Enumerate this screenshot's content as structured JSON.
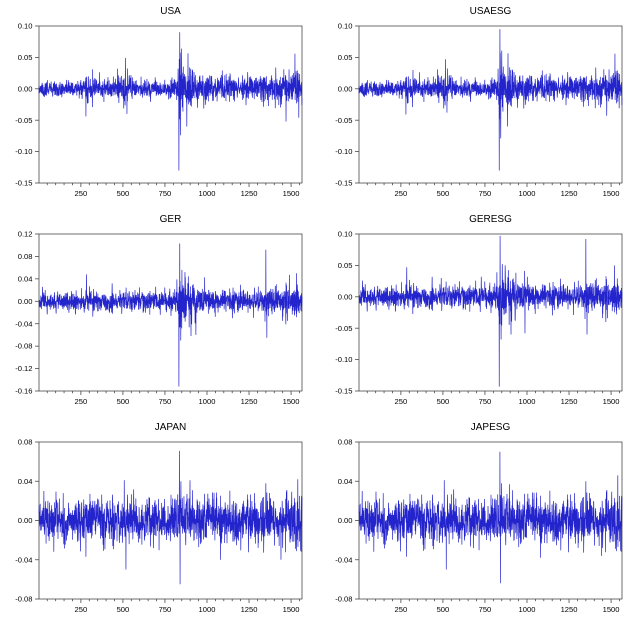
{
  "figure": {
    "background": "#ffffff",
    "line_color": "#2424cc",
    "frame_color": "#4a4a4a",
    "text_color": "#000000",
    "grid": "off",
    "legend": "none"
  },
  "chart_data": [
    {
      "type": "line",
      "title": "USA",
      "xlabel": "",
      "ylabel": "",
      "n": 1565,
      "seed": 11,
      "xlim": [
        1,
        1565
      ],
      "xticks": [
        250,
        500,
        750,
        1000,
        1250,
        1500
      ],
      "xminor_step": 50,
      "ylim": [
        -0.15,
        0.1
      ],
      "ytick_step": 0.05,
      "ytick_decimals": 2,
      "baseline": 0,
      "cap": 0.058,
      "vol_profile": [
        [
          1,
          0.0062
        ],
        [
          240,
          0.0062
        ],
        [
          285,
          0.0105
        ],
        [
          335,
          0.0072
        ],
        [
          450,
          0.0085
        ],
        [
          520,
          0.0108
        ],
        [
          570,
          0.007
        ],
        [
          700,
          0.0068
        ],
        [
          795,
          0.0075
        ],
        [
          822,
          0.011
        ],
        [
          833,
          0.028
        ],
        [
          858,
          0.021
        ],
        [
          900,
          0.0145
        ],
        [
          955,
          0.0115
        ],
        [
          1060,
          0.0095
        ],
        [
          1160,
          0.008
        ],
        [
          1255,
          0.0092
        ],
        [
          1360,
          0.0115
        ],
        [
          1460,
          0.0125
        ],
        [
          1565,
          0.0125
        ]
      ],
      "spikes": [
        [
          280,
          -0.044
        ],
        [
          320,
          0.031
        ],
        [
          468,
          0.032
        ],
        [
          515,
          0.049
        ],
        [
          524,
          -0.04
        ],
        [
          833,
          -0.13
        ],
        [
          838,
          0.09
        ],
        [
          843,
          -0.074
        ],
        [
          849,
          0.064
        ],
        [
          880,
          -0.06
        ],
        [
          903,
          0.032
        ],
        [
          1470,
          -0.052
        ],
        [
          1523,
          0.056
        ],
        [
          1546,
          -0.046
        ]
      ]
    },
    {
      "type": "line",
      "title": "USAESG",
      "xlabel": "",
      "ylabel": "",
      "n": 1565,
      "seed": 11,
      "xlim": [
        1,
        1565
      ],
      "xticks": [
        250,
        500,
        750,
        1000,
        1250,
        1500
      ],
      "xminor_step": 50,
      "ylim": [
        -0.15,
        0.1
      ],
      "ytick_step": 0.05,
      "ytick_decimals": 2,
      "baseline": 0,
      "cap": 0.058,
      "vol_profile": [
        [
          1,
          0.0062
        ],
        [
          240,
          0.0062
        ],
        [
          285,
          0.0105
        ],
        [
          335,
          0.0072
        ],
        [
          450,
          0.0085
        ],
        [
          520,
          0.0108
        ],
        [
          570,
          0.007
        ],
        [
          700,
          0.0068
        ],
        [
          795,
          0.0075
        ],
        [
          822,
          0.011
        ],
        [
          833,
          0.028
        ],
        [
          858,
          0.021
        ],
        [
          900,
          0.0145
        ],
        [
          955,
          0.0115
        ],
        [
          1060,
          0.0095
        ],
        [
          1160,
          0.008
        ],
        [
          1255,
          0.0092
        ],
        [
          1360,
          0.0115
        ],
        [
          1460,
          0.0125
        ],
        [
          1565,
          0.0125
        ]
      ],
      "spikes": [
        [
          280,
          -0.041
        ],
        [
          322,
          0.03
        ],
        [
          468,
          0.031
        ],
        [
          515,
          0.047
        ],
        [
          524,
          -0.038
        ],
        [
          835,
          -0.13
        ],
        [
          839,
          0.095
        ],
        [
          844,
          -0.079
        ],
        [
          850,
          0.061
        ],
        [
          884,
          -0.06
        ],
        [
          903,
          0.03
        ],
        [
          1474,
          -0.043
        ],
        [
          1523,
          0.056
        ],
        [
          1548,
          -0.031
        ]
      ]
    },
    {
      "type": "line",
      "title": "GER",
      "xlabel": "",
      "ylabel": "",
      "n": 1565,
      "seed": 33,
      "xlim": [
        1,
        1565
      ],
      "xticks": [
        250,
        500,
        750,
        1000,
        1250,
        1500
      ],
      "xminor_step": 50,
      "ylim": [
        -0.16,
        0.12
      ],
      "ytick_step": 0.04,
      "ytick_decimals": 2,
      "baseline": 0,
      "cap": 0.055,
      "vol_profile": [
        [
          1,
          0.0082
        ],
        [
          250,
          0.0085
        ],
        [
          300,
          0.009
        ],
        [
          500,
          0.009
        ],
        [
          700,
          0.0082
        ],
        [
          800,
          0.009
        ],
        [
          826,
          0.013
        ],
        [
          836,
          0.03
        ],
        [
          868,
          0.022
        ],
        [
          925,
          0.015
        ],
        [
          1005,
          0.0115
        ],
        [
          1110,
          0.0098
        ],
        [
          1255,
          0.0098
        ],
        [
          1330,
          0.0118
        ],
        [
          1395,
          0.0125
        ],
        [
          1500,
          0.0135
        ],
        [
          1565,
          0.0135
        ]
      ],
      "spikes": [
        [
          283,
          0.048
        ],
        [
          833,
          -0.152
        ],
        [
          838,
          0.103
        ],
        [
          844,
          -0.07
        ],
        [
          851,
          0.056
        ],
        [
          869,
          0.052
        ],
        [
          905,
          -0.062
        ],
        [
          934,
          -0.06
        ],
        [
          1350,
          0.092
        ],
        [
          1356,
          -0.065
        ],
        [
          1490,
          0.047
        ],
        [
          1532,
          0.05
        ]
      ]
    },
    {
      "type": "line",
      "title": "GERESG",
      "xlabel": "",
      "ylabel": "",
      "n": 1565,
      "seed": 33,
      "xlim": [
        1,
        1565
      ],
      "xticks": [
        250,
        500,
        750,
        1000,
        1250,
        1500
      ],
      "xminor_step": 50,
      "ylim": [
        -0.15,
        0.1
      ],
      "ytick_step": 0.05,
      "ytick_decimals": 2,
      "baseline": 0,
      "cap": 0.052,
      "vol_profile": [
        [
          1,
          0.0082
        ],
        [
          250,
          0.0085
        ],
        [
          300,
          0.009
        ],
        [
          500,
          0.009
        ],
        [
          700,
          0.0082
        ],
        [
          800,
          0.009
        ],
        [
          826,
          0.013
        ],
        [
          836,
          0.028
        ],
        [
          868,
          0.021
        ],
        [
          925,
          0.0145
        ],
        [
          1005,
          0.0112
        ],
        [
          1110,
          0.0096
        ],
        [
          1255,
          0.0096
        ],
        [
          1330,
          0.0115
        ],
        [
          1395,
          0.0122
        ],
        [
          1500,
          0.0132
        ],
        [
          1565,
          0.0132
        ]
      ],
      "spikes": [
        [
          285,
          0.047
        ],
        [
          490,
          0.03
        ],
        [
          728,
          0.032
        ],
        [
          835,
          -0.143
        ],
        [
          840,
          0.097
        ],
        [
          846,
          -0.068
        ],
        [
          853,
          0.052
        ],
        [
          870,
          0.05
        ],
        [
          905,
          -0.06
        ],
        [
          988,
          -0.058
        ],
        [
          1002,
          0.032
        ],
        [
          1350,
          0.092
        ],
        [
          1357,
          -0.06
        ],
        [
          1520,
          0.05
        ]
      ]
    },
    {
      "type": "line",
      "title": "JAPAN",
      "xlabel": "",
      "ylabel": "",
      "n": 1565,
      "seed": 55,
      "xlim": [
        1,
        1565
      ],
      "xticks": [
        250,
        500,
        750,
        1000,
        1250,
        1500
      ],
      "xminor_step": 50,
      "ylim": [
        -0.08,
        0.08
      ],
      "ytick_step": 0.04,
      "ytick_decimals": 2,
      "baseline": 0,
      "cap": 0.034,
      "vol_profile": [
        [
          1,
          0.0102
        ],
        [
          300,
          0.0102
        ],
        [
          500,
          0.011
        ],
        [
          800,
          0.0102
        ],
        [
          830,
          0.0125
        ],
        [
          848,
          0.0142
        ],
        [
          905,
          0.0118
        ],
        [
          1100,
          0.0108
        ],
        [
          1300,
          0.011
        ],
        [
          1450,
          0.0118
        ],
        [
          1565,
          0.0128
        ]
      ],
      "spikes": [
        [
          30,
          0.03
        ],
        [
          280,
          -0.037
        ],
        [
          508,
          0.041
        ],
        [
          518,
          -0.05
        ],
        [
          836,
          0.071
        ],
        [
          840,
          -0.065
        ],
        [
          845,
          0.04
        ],
        [
          899,
          0.041
        ],
        [
          1080,
          -0.04
        ],
        [
          1350,
          0.038
        ],
        [
          1440,
          -0.04
        ],
        [
          1540,
          0.042
        ]
      ]
    },
    {
      "type": "line",
      "title": "JAPESG",
      "xlabel": "",
      "ylabel": "",
      "n": 1565,
      "seed": 55,
      "xlim": [
        1,
        1565
      ],
      "xticks": [
        250,
        500,
        750,
        1000,
        1250,
        1500
      ],
      "xminor_step": 50,
      "ylim": [
        -0.08,
        0.08
      ],
      "ytick_step": 0.04,
      "ytick_decimals": 2,
      "baseline": 0,
      "cap": 0.034,
      "vol_profile": [
        [
          1,
          0.0102
        ],
        [
          300,
          0.0102
        ],
        [
          500,
          0.011
        ],
        [
          800,
          0.0102
        ],
        [
          830,
          0.0125
        ],
        [
          848,
          0.0142
        ],
        [
          905,
          0.0118
        ],
        [
          1100,
          0.0108
        ],
        [
          1300,
          0.011
        ],
        [
          1450,
          0.0118
        ],
        [
          1565,
          0.0128
        ]
      ],
      "spikes": [
        [
          20,
          0.03
        ],
        [
          284,
          -0.037
        ],
        [
          508,
          0.041
        ],
        [
          520,
          -0.05
        ],
        [
          839,
          0.07
        ],
        [
          843,
          -0.064
        ],
        [
          849,
          0.038
        ],
        [
          896,
          0.037
        ],
        [
          1080,
          -0.038
        ],
        [
          1350,
          0.04
        ],
        [
          1444,
          -0.036
        ],
        [
          1540,
          0.046
        ]
      ]
    }
  ]
}
